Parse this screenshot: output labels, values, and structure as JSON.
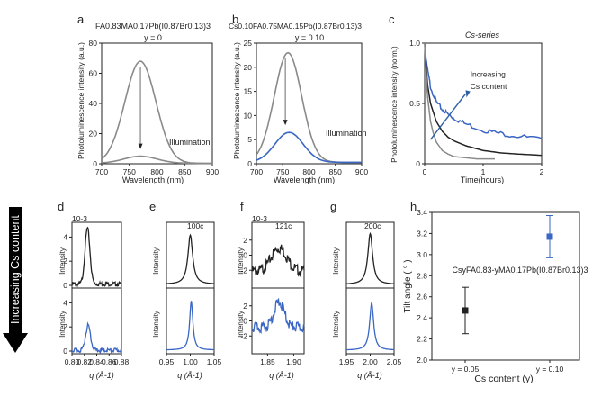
{
  "arrow_label": "Increasing Cs content",
  "colors": {
    "gray": "#8a8a8a",
    "blue": "#3a66c4",
    "dark": "#222222",
    "arrow": "#000000"
  },
  "chart_data": [
    {
      "panel": "a",
      "type": "line",
      "title": "FA0.83MA0.17Pb(I0.87Br0.13)3",
      "subtitle": "y = 0",
      "xlabel": "Wavelength (nm)",
      "ylabel": "Photoluminescence intensity (a.u.)",
      "xlim": [
        700,
        900
      ],
      "ylim": [
        0,
        80
      ],
      "xticks": [
        700,
        750,
        800,
        850,
        900
      ],
      "yticks": [
        0,
        20,
        40,
        60,
        80
      ],
      "annotation": "Illumination",
      "series": [
        {
          "color": "#8a8a8a",
          "peak_x": 770,
          "peak_y": 68,
          "width": 28
        },
        {
          "color": "#8a8a8a",
          "peak_x": 770,
          "peak_y": 5,
          "width": 30
        }
      ]
    },
    {
      "panel": "b",
      "type": "line",
      "title": "Cs0.10FA0.75MA0.15Pb(I0.87Br0.13)3",
      "subtitle": "y = 0.10",
      "xlabel": "Wavelength (nm)",
      "ylabel": "Photoluminescence intensity (a.u.)",
      "xlim": [
        700,
        900
      ],
      "ylim": [
        0,
        25
      ],
      "xticks": [
        700,
        750,
        800,
        850,
        900
      ],
      "yticks": [
        0,
        5,
        10,
        15,
        20,
        25
      ],
      "annotation": "Illumination",
      "series": [
        {
          "color": "#8a8a8a",
          "peak_x": 760,
          "peak_y": 23,
          "width": 26
        },
        {
          "color": "#3a66c4",
          "peak_x": 762,
          "peak_y": 6.5,
          "width": 27
        }
      ]
    },
    {
      "panel": "c",
      "type": "line",
      "title": "Cs-series",
      "xlabel": "Time(hours)",
      "ylabel": "Photoluminescence intensity (norm.)",
      "xlim": [
        0,
        2
      ],
      "ylim": [
        0,
        1
      ],
      "xticks": [
        0,
        1,
        2
      ],
      "yticks": [
        0,
        0.5,
        1.0
      ],
      "annotation": "Increasing Cs content",
      "series": [
        {
          "color": "#3a66c4",
          "x": [
            0,
            0.05,
            0.1,
            0.2,
            0.3,
            0.4,
            0.5,
            0.7,
            1.0,
            1.3,
            1.6,
            2.0
          ],
          "y": [
            1.0,
            0.78,
            0.65,
            0.52,
            0.46,
            0.42,
            0.39,
            0.34,
            0.29,
            0.26,
            0.24,
            0.21
          ]
        },
        {
          "color": "#222222",
          "x": [
            0,
            0.05,
            0.1,
            0.2,
            0.3,
            0.4,
            0.5,
            0.7,
            1.0,
            1.3,
            1.6,
            2.0
          ],
          "y": [
            1.0,
            0.65,
            0.5,
            0.35,
            0.27,
            0.22,
            0.19,
            0.15,
            0.11,
            0.09,
            0.08,
            0.07
          ]
        },
        {
          "color": "#8a8a8a",
          "x": [
            0,
            0.05,
            0.1,
            0.15,
            0.2,
            0.3,
            0.4,
            0.5,
            0.7,
            0.9,
            1.2
          ],
          "y": [
            1.0,
            0.55,
            0.35,
            0.25,
            0.18,
            0.11,
            0.08,
            0.06,
            0.05,
            0.04,
            0.04
          ]
        }
      ]
    },
    {
      "panel": "d",
      "type": "line",
      "exponent": "10-3",
      "xlabel": "q (Å-1)",
      "ylabel": "Intensity",
      "xlim": [
        0.8,
        0.88
      ],
      "xticks": [
        0.8,
        0.82,
        0.84,
        0.86,
        0.88
      ],
      "top": {
        "ylim": [
          0,
          5
        ],
        "yticks": [
          0,
          2,
          4
        ],
        "color": "#222222",
        "peak_x": 0.825,
        "peak_y": 4.8,
        "width": 0.004,
        "base": 0.2
      },
      "bottom": {
        "ylim": [
          0,
          5
        ],
        "yticks": [
          0,
          2,
          4
        ],
        "color": "#3a66c4",
        "peak_x": 0.826,
        "peak_y": 2.2,
        "width": 0.004,
        "base": 0.15
      }
    },
    {
      "panel": "e",
      "type": "line",
      "reflection": "100c",
      "xlabel": "q (Å-1)",
      "ylabel": "Intensity",
      "xlim": [
        0.95,
        1.05
      ],
      "xticks": [
        0.95,
        1.0,
        1.05
      ],
      "top": {
        "ylim": [
          0,
          1.2
        ],
        "color": "#222222",
        "peak_x": 1.0,
        "peak_y": 1.0,
        "width": 0.006,
        "base": 0.02
      },
      "bottom": {
        "ylim": [
          0,
          1.2
        ],
        "color": "#3a66c4",
        "peak_x": 1.002,
        "peak_y": 1.0,
        "width": 0.004,
        "base": 0.02
      }
    },
    {
      "panel": "f",
      "type": "line",
      "exponent": "10-3",
      "reflection": "121c",
      "xlabel": "q (Å-1)",
      "ylabel": "Intensity",
      "xlim": [
        1.82,
        1.92
      ],
      "xticks": [
        1.85,
        1.9
      ],
      "top": {
        "ylim": [
          -4,
          4
        ],
        "yticks": [
          -2,
          0,
          2
        ],
        "color": "#222222",
        "peak_x": 1.872,
        "peak_y": 1.3,
        "width": 0.015,
        "base": -1.8
      },
      "bottom": {
        "ylim": [
          -4,
          4
        ],
        "yticks": [
          -2,
          0,
          2
        ],
        "color": "#3a66c4",
        "peak_x": 1.872,
        "peak_y": 2.8,
        "width": 0.01,
        "base": -0.5
      }
    },
    {
      "panel": "g",
      "type": "line",
      "reflection": "200c",
      "xlabel": "q (Å-1)",
      "ylabel": "Intensity",
      "xlim": [
        1.95,
        2.05
      ],
      "xticks": [
        1.95,
        2.0,
        2.05
      ],
      "top": {
        "ylim": [
          0,
          0.7
        ],
        "color": "#222222",
        "peak_x": 2.0,
        "peak_y": 0.6,
        "width": 0.006,
        "base": 0.01
      },
      "bottom": {
        "ylim": [
          0,
          0.7
        ],
        "color": "#3a66c4",
        "peak_x": 2.003,
        "peak_y": 0.56,
        "width": 0.005,
        "base": 0.01
      }
    },
    {
      "panel": "h",
      "type": "scatter",
      "annotation": "CsyFA0.83-yMA0.17Pb(I0.87Br0.13)3",
      "xlabel": "Cs content (y)",
      "ylabel": "Tilt angle ( ° )",
      "categories": [
        "y = 0.05",
        "y = 0.10"
      ],
      "ylim": [
        2.0,
        3.4
      ],
      "yticks": [
        2.0,
        2.2,
        2.4,
        2.6,
        2.8,
        3.0,
        3.2,
        3.4
      ],
      "points": [
        {
          "x": "y = 0.05",
          "y": 2.47,
          "err_low": 2.25,
          "err_high": 2.69,
          "color": "#222222"
        },
        {
          "x": "y = 0.10",
          "y": 3.17,
          "err_low": 2.97,
          "err_high": 3.37,
          "color": "#3a66c4"
        }
      ]
    }
  ]
}
